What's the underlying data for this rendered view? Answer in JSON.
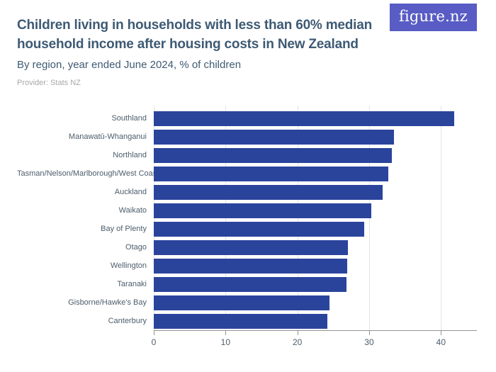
{
  "brand": {
    "logo_text": "figure.nz",
    "logo_bg_color": "#585cc4",
    "logo_text_color": "#ffffff"
  },
  "header": {
    "title_color": "#3e5a74",
    "provider_color": "#a8a8a8"
  },
  "chart_data": {
    "type": "bar",
    "orientation": "horizontal",
    "title": "Children living in households with less than 60% median household income after housing costs in New Zealand",
    "subtitle": "By region, year ended June 2024, % of children",
    "provider": "Provider: Stats NZ",
    "categories": [
      "Southland",
      "Manawatū-Whanganui",
      "Northland",
      "Tasman/Nelson/Marlborough/West Coast",
      "Auckland",
      "Waikato",
      "Bay of Plenty",
      "Otago",
      "Wellington",
      "Taranaki",
      "Gisborne/Hawke's Bay",
      "Canterbury"
    ],
    "values": [
      41.8,
      33.5,
      33.2,
      32.7,
      31.9,
      30.3,
      29.3,
      27.0,
      26.9,
      26.8,
      24.5,
      24.2
    ],
    "xlabel": "",
    "ylabel": "",
    "xlim": [
      0,
      45
    ],
    "xticks": [
      0,
      10,
      20,
      30,
      40
    ],
    "grid": true,
    "legend": "none",
    "bar_color": "#2a449c",
    "grid_color": "#e4e4e4",
    "axis_color": "#949494",
    "label_color": "#4d5d6b"
  }
}
